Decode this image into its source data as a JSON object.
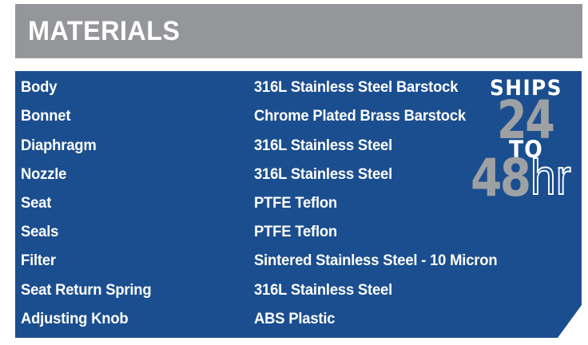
{
  "header": {
    "title": "MATERIALS"
  },
  "table": {
    "rows": [
      {
        "label": "Body",
        "value": "316L Stainless Steel Barstock"
      },
      {
        "label": "Bonnet",
        "value": "Chrome Plated Brass Barstock"
      },
      {
        "label": "Diaphragm",
        "value": "316L Stainless Steel"
      },
      {
        "label": "Nozzle",
        "value": "316L Stainless Steel"
      },
      {
        "label": "Seat",
        "value": "PTFE Teflon"
      },
      {
        "label": "Seals",
        "value": "PTFE Teflon"
      },
      {
        "label": "Filter",
        "value": "Sintered Stainless Steel - 10 Micron"
      },
      {
        "label": "Seat Return Spring",
        "value": "316L Stainless Steel"
      },
      {
        "label": "Adjusting Knob",
        "value": "ABS Plastic"
      }
    ]
  },
  "badge": {
    "ships": "SHIPS",
    "num_top": "24",
    "to": "TO",
    "num_bottom": "48",
    "suffix": "hr"
  },
  "colors": {
    "panel_blue": "#1B4E8F",
    "header_gray": "#949699",
    "badge_number_gray": "#9EA1A4",
    "text_white": "#FFFFFF"
  }
}
